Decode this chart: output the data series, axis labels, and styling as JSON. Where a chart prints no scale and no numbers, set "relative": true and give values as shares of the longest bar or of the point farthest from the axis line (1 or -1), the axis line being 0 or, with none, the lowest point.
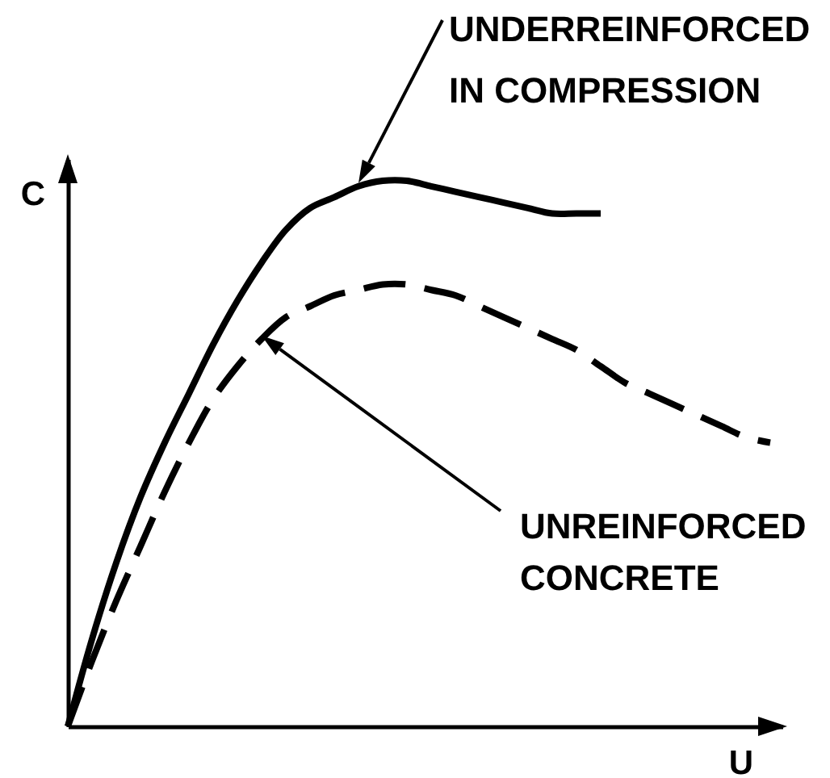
{
  "chart_data": {
    "type": "line",
    "relative": true,
    "xlabel": "U",
    "ylabel": "C",
    "categories": [
      null,
      null,
      null,
      null,
      null,
      null,
      null,
      null,
      null,
      null,
      null,
      null,
      null,
      null,
      null,
      null,
      null,
      null,
      null,
      null,
      null,
      null,
      null,
      null,
      null,
      null,
      null,
      null,
      null,
      null
    ],
    "series": [
      {
        "name": "UNDERREINFORCED IN COMPRESSION",
        "color": "#000000",
        "line_style": "solid",
        "values": [
          0,
          0.16,
          0.3,
          0.42,
          0.52,
          0.61,
          0.7,
          0.78,
          0.85,
          0.91,
          0.95,
          0.97,
          0.99,
          1,
          1,
          0.99,
          0.98,
          0.97,
          0.96,
          0.95,
          0.94,
          0.94,
          0.94,
          null,
          null,
          null,
          null,
          null,
          null,
          null
        ]
      },
      {
        "name": "UNREINFORCED CONCRETE",
        "color": "#000000",
        "line_style": "dashed",
        "values": [
          0,
          0.12,
          0.23,
          0.33,
          0.43,
          0.52,
          0.6,
          0.66,
          0.71,
          0.75,
          0.77,
          0.79,
          0.8,
          0.81,
          0.81,
          0.8,
          0.79,
          0.77,
          0.75,
          0.73,
          0.71,
          0.69,
          0.66,
          0.63,
          0.61,
          0.59,
          0.57,
          0.55,
          0.53,
          0.52
        ]
      }
    ]
  }
}
